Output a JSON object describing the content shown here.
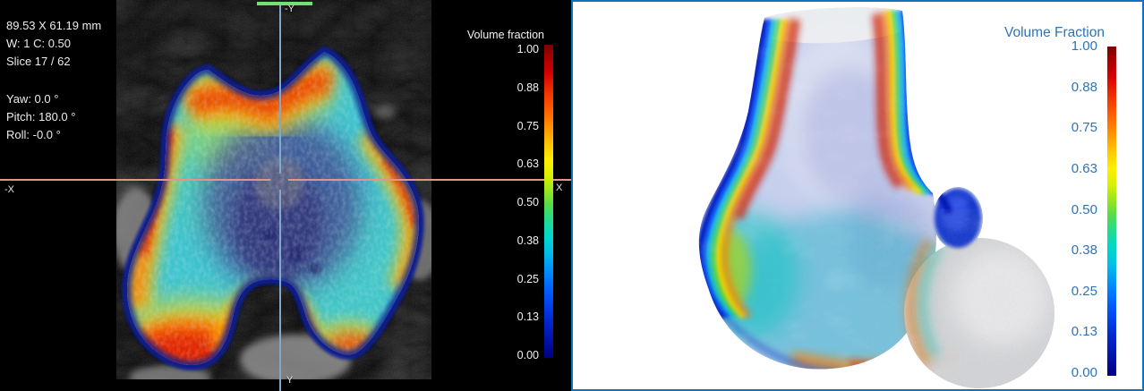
{
  "left_viewport": {
    "overlay_info": {
      "field_of_view": "89.53 X 61.19 mm",
      "window_center": "W: 1 C: 0.50",
      "slice": "Slice 17 / 62",
      "yaw": "Yaw: 0.0 °",
      "pitch": "Pitch: 180.0 °",
      "roll": "Roll: -0.0 °"
    },
    "axis_labels": {
      "top": "-Y",
      "bottom": "Y",
      "left": "-X",
      "right": "X"
    },
    "colorbar": {
      "title": "Volume fraction",
      "ticks": [
        "1.00",
        "0.88",
        "0.75",
        "0.63",
        "0.50",
        "0.38",
        "0.25",
        "0.13",
        "0.00"
      ]
    }
  },
  "right_viewport": {
    "colorbar": {
      "title": "Volume Fraction",
      "ticks": [
        "1.00",
        "0.88",
        "0.75",
        "0.63",
        "0.50",
        "0.38",
        "0.25",
        "0.13",
        "0.00"
      ]
    }
  },
  "colors": {
    "slice_marker_green": "#72e072",
    "crosshair_vertical_blue": "#7fa8cc",
    "crosshair_horizontal_pink": "#e6938a",
    "right_panel_accent_blue": "#2e74b5",
    "right_panel_border_blue": "#1273bd",
    "colormap_max": "#7f0000",
    "colormap_min": "#000080"
  }
}
